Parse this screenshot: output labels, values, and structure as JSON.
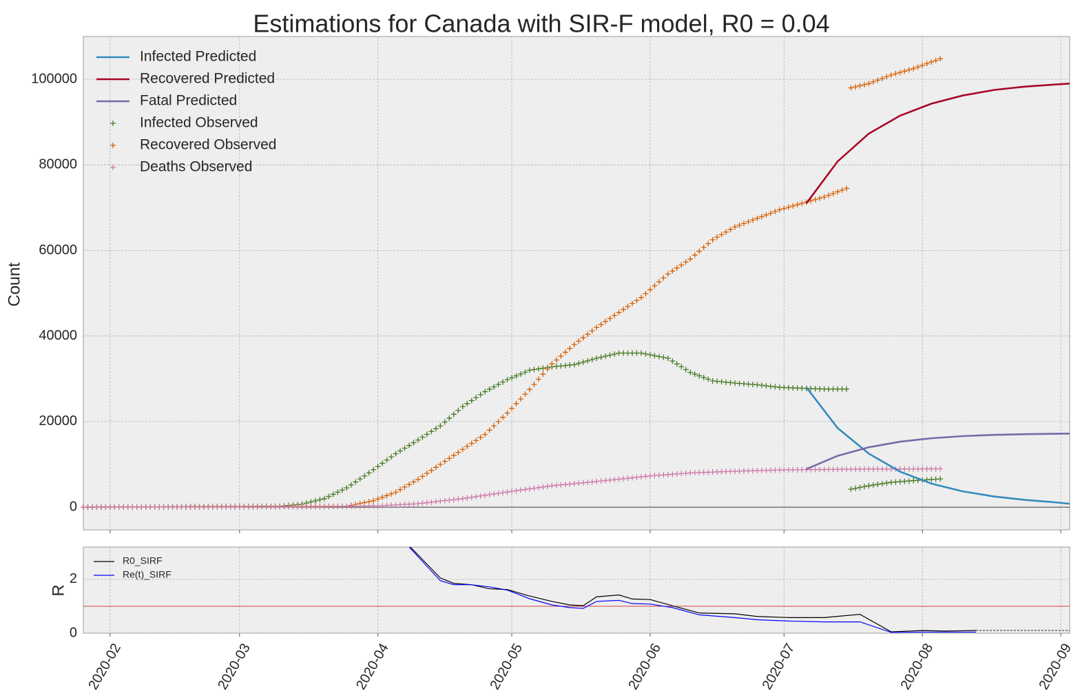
{
  "chart_data": [
    {
      "type": "line",
      "title": "Estimations for Canada with SIR-F model, R0 = 0.04",
      "ylabel": "Count",
      "xlim": [
        "2020-01-26",
        "2020-09-03"
      ],
      "ylim": [
        -5300,
        110000
      ],
      "x_ticks": [
        "2020-02-01",
        "2020-03-01",
        "2020-04-01",
        "2020-05-01",
        "2020-06-01",
        "2020-07-01",
        "2020-08-01",
        "2020-09-01"
      ],
      "x_tick_labels": [
        "2020-02",
        "2020-03",
        "2020-04",
        "2020-05",
        "2020-06",
        "2020-07",
        "2020-08",
        "2020-09"
      ],
      "y_ticks": [
        0,
        20000,
        40000,
        60000,
        80000,
        100000
      ],
      "y_tick_labels": [
        "0",
        "20000",
        "40000",
        "60000",
        "80000",
        "100000"
      ],
      "grid": true,
      "legend_position": "top-left",
      "series": [
        {
          "name": "Infected Predicted",
          "kind": "line",
          "color": "#348abd",
          "x": [
            "2020-07-06",
            "2020-07-13",
            "2020-07-20",
            "2020-07-27",
            "2020-08-03",
            "2020-08-10",
            "2020-08-17",
            "2020-08-24",
            "2020-08-31",
            "2020-09-03"
          ],
          "y": [
            28000,
            18500,
            12500,
            8300,
            5500,
            3700,
            2500,
            1700,
            1100,
            800
          ]
        },
        {
          "name": "Recovered Predicted",
          "kind": "line",
          "color": "#a60628",
          "x": [
            "2020-07-06",
            "2020-07-13",
            "2020-07-20",
            "2020-07-27",
            "2020-08-03",
            "2020-08-10",
            "2020-08-17",
            "2020-08-24",
            "2020-08-31",
            "2020-09-03"
          ],
          "y": [
            71000,
            80800,
            87300,
            91500,
            94300,
            96200,
            97500,
            98300,
            98800,
            99000
          ]
        },
        {
          "name": "Fatal Predicted",
          "kind": "line",
          "color": "#7a68a6",
          "x": [
            "2020-07-06",
            "2020-07-13",
            "2020-07-20",
            "2020-07-27",
            "2020-08-03",
            "2020-08-10",
            "2020-08-17",
            "2020-08-24",
            "2020-08-31",
            "2020-09-03"
          ],
          "y": [
            8900,
            12000,
            14000,
            15300,
            16100,
            16600,
            16900,
            17050,
            17150,
            17200
          ]
        },
        {
          "name": "Infected Observed",
          "kind": "scatter",
          "color": "#467821",
          "x": [
            "2020-01-26",
            "2020-03-10",
            "2020-03-15",
            "2020-03-20",
            "2020-03-25",
            "2020-03-30",
            "2020-04-05",
            "2020-04-10",
            "2020-04-15",
            "2020-04-20",
            "2020-04-25",
            "2020-04-30",
            "2020-05-05",
            "2020-05-10",
            "2020-05-15",
            "2020-05-20",
            "2020-05-25",
            "2020-05-30",
            "2020-06-05",
            "2020-06-10",
            "2020-06-15",
            "2020-06-20",
            "2020-06-25",
            "2020-06-30",
            "2020-07-05",
            "2020-07-10",
            "2020-07-15",
            "2020-07-16",
            "2020-07-20",
            "2020-07-25",
            "2020-07-30",
            "2020-08-05"
          ],
          "y": [
            0,
            200,
            700,
            2000,
            4500,
            8000,
            12500,
            15700,
            19000,
            23500,
            27000,
            29800,
            32000,
            32800,
            33300,
            34800,
            36000,
            36000,
            34800,
            31500,
            29500,
            29000,
            28600,
            28000,
            27800,
            27600,
            27600,
            4200,
            5000,
            5800,
            6200,
            6600
          ]
        },
        {
          "name": "Recovered Observed",
          "kind": "scatter",
          "color": "#d55e00",
          "x": [
            "2020-01-26",
            "2020-03-25",
            "2020-03-31",
            "2020-04-05",
            "2020-04-10",
            "2020-04-15",
            "2020-04-20",
            "2020-04-25",
            "2020-04-30",
            "2020-05-05",
            "2020-05-10",
            "2020-05-15",
            "2020-05-20",
            "2020-05-25",
            "2020-05-30",
            "2020-06-05",
            "2020-06-10",
            "2020-06-15",
            "2020-06-20",
            "2020-06-25",
            "2020-06-30",
            "2020-07-05",
            "2020-07-10",
            "2020-07-15",
            "2020-07-16",
            "2020-07-20",
            "2020-07-25",
            "2020-07-30",
            "2020-08-05"
          ],
          "y": [
            0,
            200,
            1500,
            3500,
            6500,
            10000,
            13500,
            17000,
            22000,
            27500,
            33500,
            38000,
            42000,
            45500,
            49000,
            54500,
            58000,
            62500,
            65500,
            67500,
            69500,
            71000,
            72500,
            74500,
            98000,
            99000,
            101000,
            102500,
            104800
          ]
        },
        {
          "name": "Deaths Observed",
          "kind": "scatter",
          "color": "#cc79a7",
          "x": [
            "2020-01-26",
            "2020-03-20",
            "2020-04-01",
            "2020-04-10",
            "2020-04-20",
            "2020-05-01",
            "2020-05-10",
            "2020-05-20",
            "2020-06-01",
            "2020-06-10",
            "2020-06-20",
            "2020-07-01",
            "2020-07-10",
            "2020-07-20",
            "2020-08-05"
          ],
          "y": [
            0,
            100,
            300,
            800,
            2000,
            3700,
            5000,
            6000,
            7300,
            8000,
            8400,
            8700,
            8800,
            8900,
            8950
          ]
        }
      ]
    },
    {
      "type": "line",
      "ylabel": "R",
      "xlim": [
        "2020-01-26",
        "2020-09-03"
      ],
      "ylim": [
        0,
        3.2
      ],
      "y_ticks": [
        0,
        2
      ],
      "y_tick_labels": [
        "0",
        "2"
      ],
      "grid": true,
      "legend_position": "top-left",
      "reference_line": {
        "y": 1,
        "color": "#d62728"
      },
      "series": [
        {
          "name": "R0_SIRF",
          "kind": "line",
          "color": "#000000",
          "x": [
            "2020-04-08",
            "2020-04-15",
            "2020-04-18",
            "2020-04-22",
            "2020-04-26",
            "2020-04-30",
            "2020-05-05",
            "2020-05-10",
            "2020-05-14",
            "2020-05-17",
            "2020-05-20",
            "2020-05-25",
            "2020-05-28",
            "2020-06-01",
            "2020-06-06",
            "2020-06-12",
            "2020-06-20",
            "2020-06-25",
            "2020-07-02",
            "2020-07-10",
            "2020-07-18",
            "2020-07-25",
            "2020-08-01",
            "2020-08-06",
            "2020-08-13"
          ],
          "y": [
            3.25,
            2.05,
            1.85,
            1.8,
            1.65,
            1.62,
            1.38,
            1.18,
            1.05,
            1.02,
            1.35,
            1.42,
            1.27,
            1.25,
            1.02,
            0.75,
            0.72,
            0.62,
            0.58,
            0.58,
            0.7,
            0.05,
            0.1,
            0.08,
            0.1
          ]
        },
        {
          "name": "Re(t)_SIRF",
          "kind": "line",
          "color": "#0000ff",
          "x": [
            "2020-04-08",
            "2020-04-15",
            "2020-04-18",
            "2020-04-22",
            "2020-04-26",
            "2020-04-30",
            "2020-05-05",
            "2020-05-10",
            "2020-05-14",
            "2020-05-17",
            "2020-05-20",
            "2020-05-25",
            "2020-05-28",
            "2020-06-01",
            "2020-06-06",
            "2020-06-12",
            "2020-06-20",
            "2020-06-25",
            "2020-07-02",
            "2020-07-10",
            "2020-07-18",
            "2020-07-25",
            "2020-08-01",
            "2020-08-06",
            "2020-08-13"
          ],
          "y": [
            3.2,
            1.95,
            1.8,
            1.8,
            1.72,
            1.6,
            1.28,
            1.05,
            0.95,
            0.92,
            1.18,
            1.22,
            1.1,
            1.08,
            0.95,
            0.68,
            0.58,
            0.5,
            0.45,
            0.42,
            0.42,
            0.03,
            0.04,
            0.04,
            0.04
          ]
        },
        {
          "name": "",
          "kind": "dashed",
          "color": "#000000",
          "x": [
            "2020-08-13",
            "2020-09-03"
          ],
          "y": [
            0.1,
            0.1
          ]
        }
      ]
    }
  ]
}
